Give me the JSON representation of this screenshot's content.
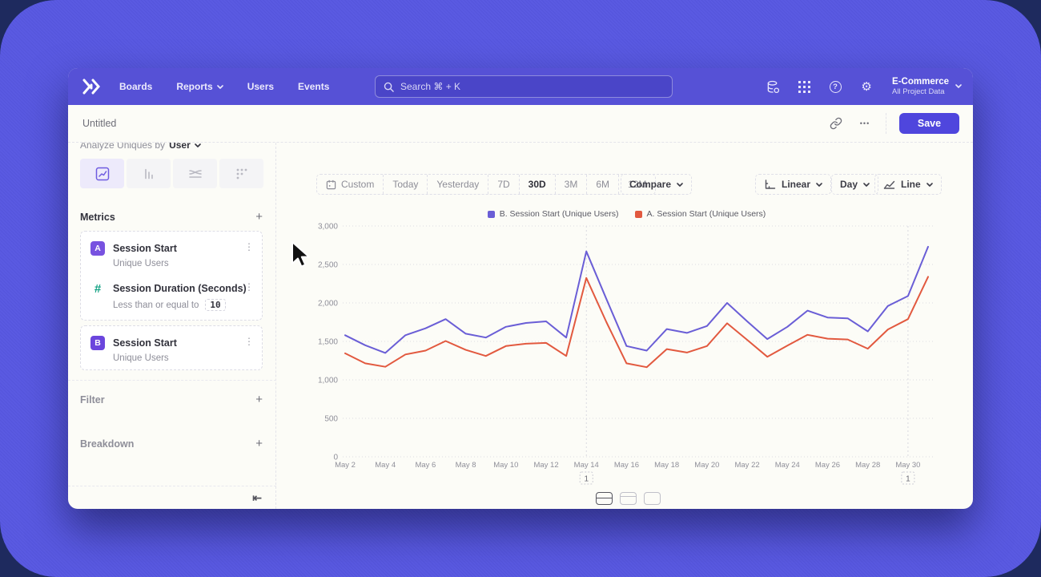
{
  "nav": {
    "items": [
      "Boards",
      "Reports",
      "Users",
      "Events"
    ],
    "search_placeholder": "Search  ⌘ + K",
    "project": {
      "name": "E-Commerce",
      "subtitle": "All Project Data"
    }
  },
  "titlebar": {
    "title": "Untitled",
    "save_label": "Save"
  },
  "sidebar": {
    "analyze_prefix": "Analyze Uniques by",
    "analyze_value": "User",
    "metrics_header": "Metrics",
    "metrics": [
      {
        "badge": "A",
        "badge_color": "#7852e0",
        "title": "Session Start",
        "subtitle": "Unique Users"
      },
      {
        "badge": "#",
        "badge_color": "#16a385",
        "title": "Session Duration (Seconds)",
        "subtitle": "Less than or equal to",
        "value": "10"
      },
      {
        "badge": "B",
        "badge_color": "#6b46dd",
        "title": "Session Start",
        "subtitle": "Unique Users"
      }
    ],
    "filter_label": "Filter",
    "breakdown_label": "Breakdown"
  },
  "toolbar": {
    "ranges": [
      "Custom",
      "Today",
      "Yesterday",
      "7D",
      "30D",
      "3M",
      "6M",
      "12M"
    ],
    "selected_range": "30D",
    "compare_label": "Compare",
    "scale_label": "Linear",
    "interval_label": "Day",
    "chart_type_label": "Line"
  },
  "icons": {
    "gear": "⚙",
    "help": "?",
    "kebab": "⋮",
    "ellipsis": "•••",
    "plus": "+",
    "collapse": "⇤"
  },
  "chart_data": {
    "type": "line",
    "x": [
      "May 2",
      "May 3",
      "May 4",
      "May 5",
      "May 6",
      "May 7",
      "May 8",
      "May 9",
      "May 10",
      "May 11",
      "May 12",
      "May 13",
      "May 14",
      "May 15",
      "May 16",
      "May 17",
      "May 18",
      "May 19",
      "May 20",
      "May 21",
      "May 22",
      "May 23",
      "May 24",
      "May 25",
      "May 26",
      "May 27",
      "May 28",
      "May 29",
      "May 30",
      "May 31"
    ],
    "x_tick_labels": [
      "May 2",
      "May 4",
      "May 6",
      "May 8",
      "May 10",
      "May 12",
      "May 14",
      "May 16",
      "May 18",
      "May 20",
      "May 22",
      "May 24",
      "May 26",
      "May 28",
      "May 30"
    ],
    "series": [
      {
        "name": "B. Session Start (Unique Users)",
        "color": "#6a5ed6",
        "values": [
          1580,
          1450,
          1350,
          1580,
          1670,
          1790,
          1600,
          1550,
          1690,
          1740,
          1760,
          1550,
          2670,
          2050,
          1440,
          1380,
          1660,
          1610,
          1700,
          2000,
          1760,
          1530,
          1690,
          1900,
          1810,
          1800,
          1630,
          1960,
          2090,
          2730
        ]
      },
      {
        "name": "A. Session Start (Unique Users)",
        "color": "#e2593f",
        "values": [
          1345,
          1215,
          1170,
          1330,
          1380,
          1505,
          1390,
          1310,
          1440,
          1470,
          1480,
          1310,
          2325,
          1750,
          1215,
          1165,
          1400,
          1355,
          1440,
          1735,
          1520,
          1300,
          1445,
          1585,
          1535,
          1525,
          1405,
          1655,
          1790,
          2340
        ]
      }
    ],
    "ylim": [
      0,
      3000
    ],
    "yticks": [
      0,
      500,
      1000,
      1500,
      2000,
      2500,
      3000
    ],
    "annotations": [
      {
        "x_index": 12,
        "label": "1"
      },
      {
        "x_index": 28,
        "label": "1"
      }
    ],
    "grid": "horizontal-dotted",
    "legend_position": "top-center",
    "title": "",
    "xlabel": "",
    "ylabel": ""
  }
}
